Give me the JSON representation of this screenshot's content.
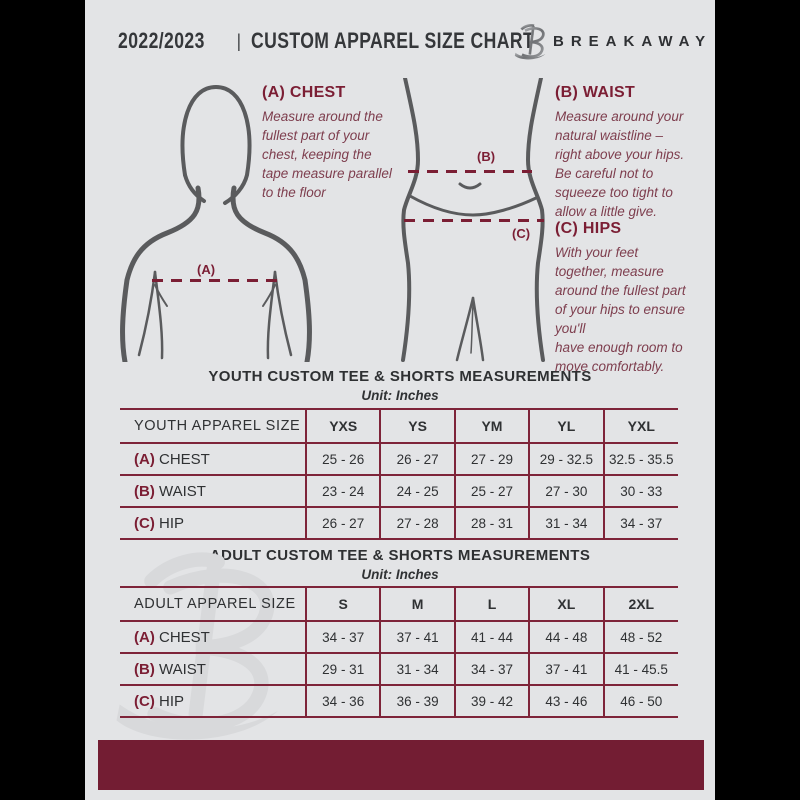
{
  "header": {
    "year": "2022/2023",
    "separator": "|",
    "title": "CUSTOM APPAREL SIZE CHART",
    "brand": "BREAKAWAY"
  },
  "figure_labels": {
    "chest": "(A)",
    "waist": "(B)",
    "hips": "(C)"
  },
  "instructions": [
    {
      "heading": "(A) CHEST",
      "body": "Measure around the\nfullest part of your\nchest, keeping the\ntape measure parallel\nto the floor"
    },
    {
      "heading": "(B) WAIST",
      "body": "Measure around your\nnatural waistline –\nright above your hips.\nBe careful not to\nsqueeze too tight to\nallow a little give."
    },
    {
      "heading": "(C) HIPS",
      "body": "With your feet\ntogether, measure\naround the fullest part\nof your hips to ensure\nyou'll\nhave enough room to\nmove comfortably."
    }
  ],
  "tables": [
    {
      "title": "YOUTH CUSTOM TEE & SHORTS MEASUREMENTS",
      "unit": "Unit: Inches",
      "header": [
        "YOUTH APPAREL SIZE",
        "YXS",
        "YS",
        "YM",
        "YL",
        "YXL"
      ],
      "rows": [
        {
          "prefix": "(A)",
          "label": "CHEST",
          "values": [
            "25 - 26",
            "26 - 27",
            "27 - 29",
            "29 - 32.5",
            "32.5 - 35.5"
          ]
        },
        {
          "prefix": "(B)",
          "label": "WAIST",
          "values": [
            "23 - 24",
            "24 - 25",
            "25 - 27",
            "27 - 30",
            "30 - 33"
          ]
        },
        {
          "prefix": "(C)",
          "label": "HIP",
          "values": [
            "26 - 27",
            "27 - 28",
            "28 - 31",
            "31 - 34",
            "34 - 37"
          ]
        }
      ]
    },
    {
      "title": "ADULT CUSTOM TEE & SHORTS MEASUREMENTS",
      "unit": "Unit: Inches",
      "header": [
        "ADULT APPAREL SIZE",
        "S",
        "M",
        "L",
        "XL",
        "2XL"
      ],
      "rows": [
        {
          "prefix": "(A)",
          "label": "CHEST",
          "values": [
            "34 - 37",
            "37 - 41",
            "41 - 44",
            "44 - 48",
            "48 - 52"
          ]
        },
        {
          "prefix": "(B)",
          "label": "WAIST",
          "values": [
            "29 - 31",
            "31 - 34",
            "34 - 37",
            "37 - 41",
            "41 - 45.5"
          ]
        },
        {
          "prefix": "(C)",
          "label": "HIP",
          "values": [
            "34 - 36",
            "36 - 39",
            "39 - 42",
            "43 - 46",
            "46 - 50"
          ]
        }
      ]
    }
  ],
  "colors": {
    "maroon_accent": "#7b1e34",
    "maroon_bar": "#731d33",
    "table_line": "#7e2439",
    "body_text_maroon": "#7e3e4e",
    "dark_text": "#2f3133",
    "figure_gray": "#5a5b5d",
    "page_background": "#e3e4e6",
    "surround": "#000000",
    "watermark": "#d8d9db"
  }
}
